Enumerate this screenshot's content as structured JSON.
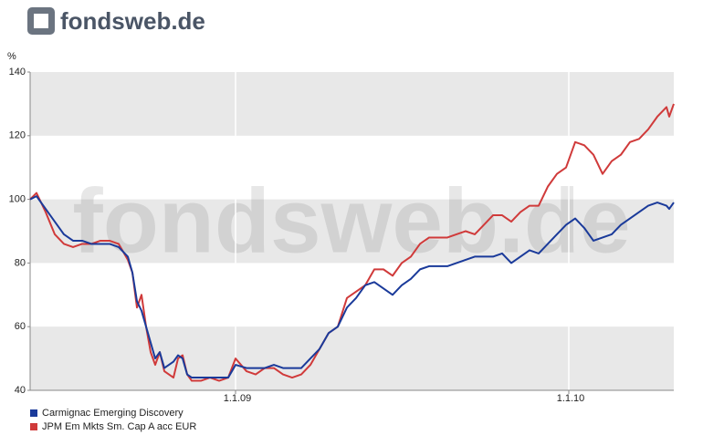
{
  "logo": "fondsweb.de",
  "chart_data": {
    "type": "line",
    "unit_label": "%",
    "watermark": "fondsweb.de",
    "xlim": [
      "2008-05-21",
      "2010-04-26"
    ],
    "xticks": [
      {
        "value": "2009-01-01",
        "label": "1.1.09"
      },
      {
        "value": "2010-01-01",
        "label": "1.1.10"
      }
    ],
    "ylim": [
      40,
      140
    ],
    "yticks": [
      40,
      60,
      80,
      100,
      120,
      140
    ],
    "bands": true,
    "x": [
      "2008-05-21",
      "2008-05-28",
      "2008-06-07",
      "2008-06-17",
      "2008-06-27",
      "2008-07-07",
      "2008-07-17",
      "2008-07-27",
      "2008-08-06",
      "2008-08-16",
      "2008-08-26",
      "2008-09-05",
      "2008-09-10",
      "2008-09-15",
      "2008-09-20",
      "2008-09-25",
      "2008-09-30",
      "2008-10-05",
      "2008-10-10",
      "2008-10-15",
      "2008-10-25",
      "2008-10-30",
      "2008-11-04",
      "2008-11-09",
      "2008-11-14",
      "2008-11-24",
      "2008-12-04",
      "2008-12-14",
      "2008-12-24",
      "2009-01-01",
      "2009-01-13",
      "2009-01-23",
      "2009-02-02",
      "2009-02-12",
      "2009-02-22",
      "2009-03-04",
      "2009-03-14",
      "2009-03-24",
      "2009-04-03",
      "2009-04-13",
      "2009-04-23",
      "2009-05-03",
      "2009-05-13",
      "2009-05-23",
      "2009-06-02",
      "2009-06-12",
      "2009-06-22",
      "2009-07-02",
      "2009-07-12",
      "2009-07-22",
      "2009-08-01",
      "2009-08-11",
      "2009-08-21",
      "2009-08-31",
      "2009-09-10",
      "2009-09-20",
      "2009-09-30",
      "2009-10-10",
      "2009-10-20",
      "2009-10-30",
      "2009-11-09",
      "2009-11-19",
      "2009-11-29",
      "2009-12-09",
      "2009-12-19",
      "2009-12-29",
      "2010-01-08",
      "2010-01-18",
      "2010-01-28",
      "2010-02-07",
      "2010-02-17",
      "2010-02-27",
      "2010-03-09",
      "2010-03-19",
      "2010-03-29",
      "2010-04-08",
      "2010-04-18",
      "2010-04-21",
      "2010-04-26"
    ],
    "series": [
      {
        "name": "Carmignac Emerging Discovery",
        "color": "#1a3a9a",
        "values": [
          100,
          101,
          97,
          93,
          89,
          87,
          87,
          86,
          86,
          86,
          85,
          82,
          77,
          68,
          65,
          60,
          55,
          50,
          52,
          47,
          49,
          51,
          50,
          45,
          44,
          44,
          44,
          44,
          44,
          48,
          47,
          47,
          47,
          48,
          47,
          47,
          47,
          50,
          53,
          58,
          60,
          66,
          69,
          73,
          74,
          72,
          70,
          73,
          75,
          78,
          79,
          79,
          79,
          80,
          81,
          82,
          82,
          82,
          83,
          80,
          82,
          84,
          83,
          86,
          89,
          92,
          94,
          91,
          87,
          88,
          89,
          92,
          94,
          96,
          98,
          99,
          98,
          97,
          99
        ]
      },
      {
        "name": "JPM Em Mkts Sm. Cap A acc EUR",
        "color": "#d03a3a",
        "values": [
          100,
          102,
          96,
          89,
          86,
          85,
          86,
          86,
          87,
          87,
          86,
          81,
          77,
          66,
          70,
          60,
          52,
          48,
          52,
          46,
          44,
          50,
          51,
          45,
          43,
          43,
          44,
          43,
          44,
          50,
          46,
          45,
          47,
          47,
          45,
          44,
          45,
          48,
          53,
          58,
          60,
          69,
          71,
          73,
          78,
          78,
          76,
          80,
          82,
          86,
          88,
          88,
          88,
          89,
          90,
          89,
          92,
          95,
          95,
          93,
          96,
          98,
          98,
          104,
          108,
          110,
          118,
          117,
          114,
          108,
          112,
          114,
          118,
          119,
          122,
          126,
          129,
          126,
          130
        ]
      }
    ]
  }
}
